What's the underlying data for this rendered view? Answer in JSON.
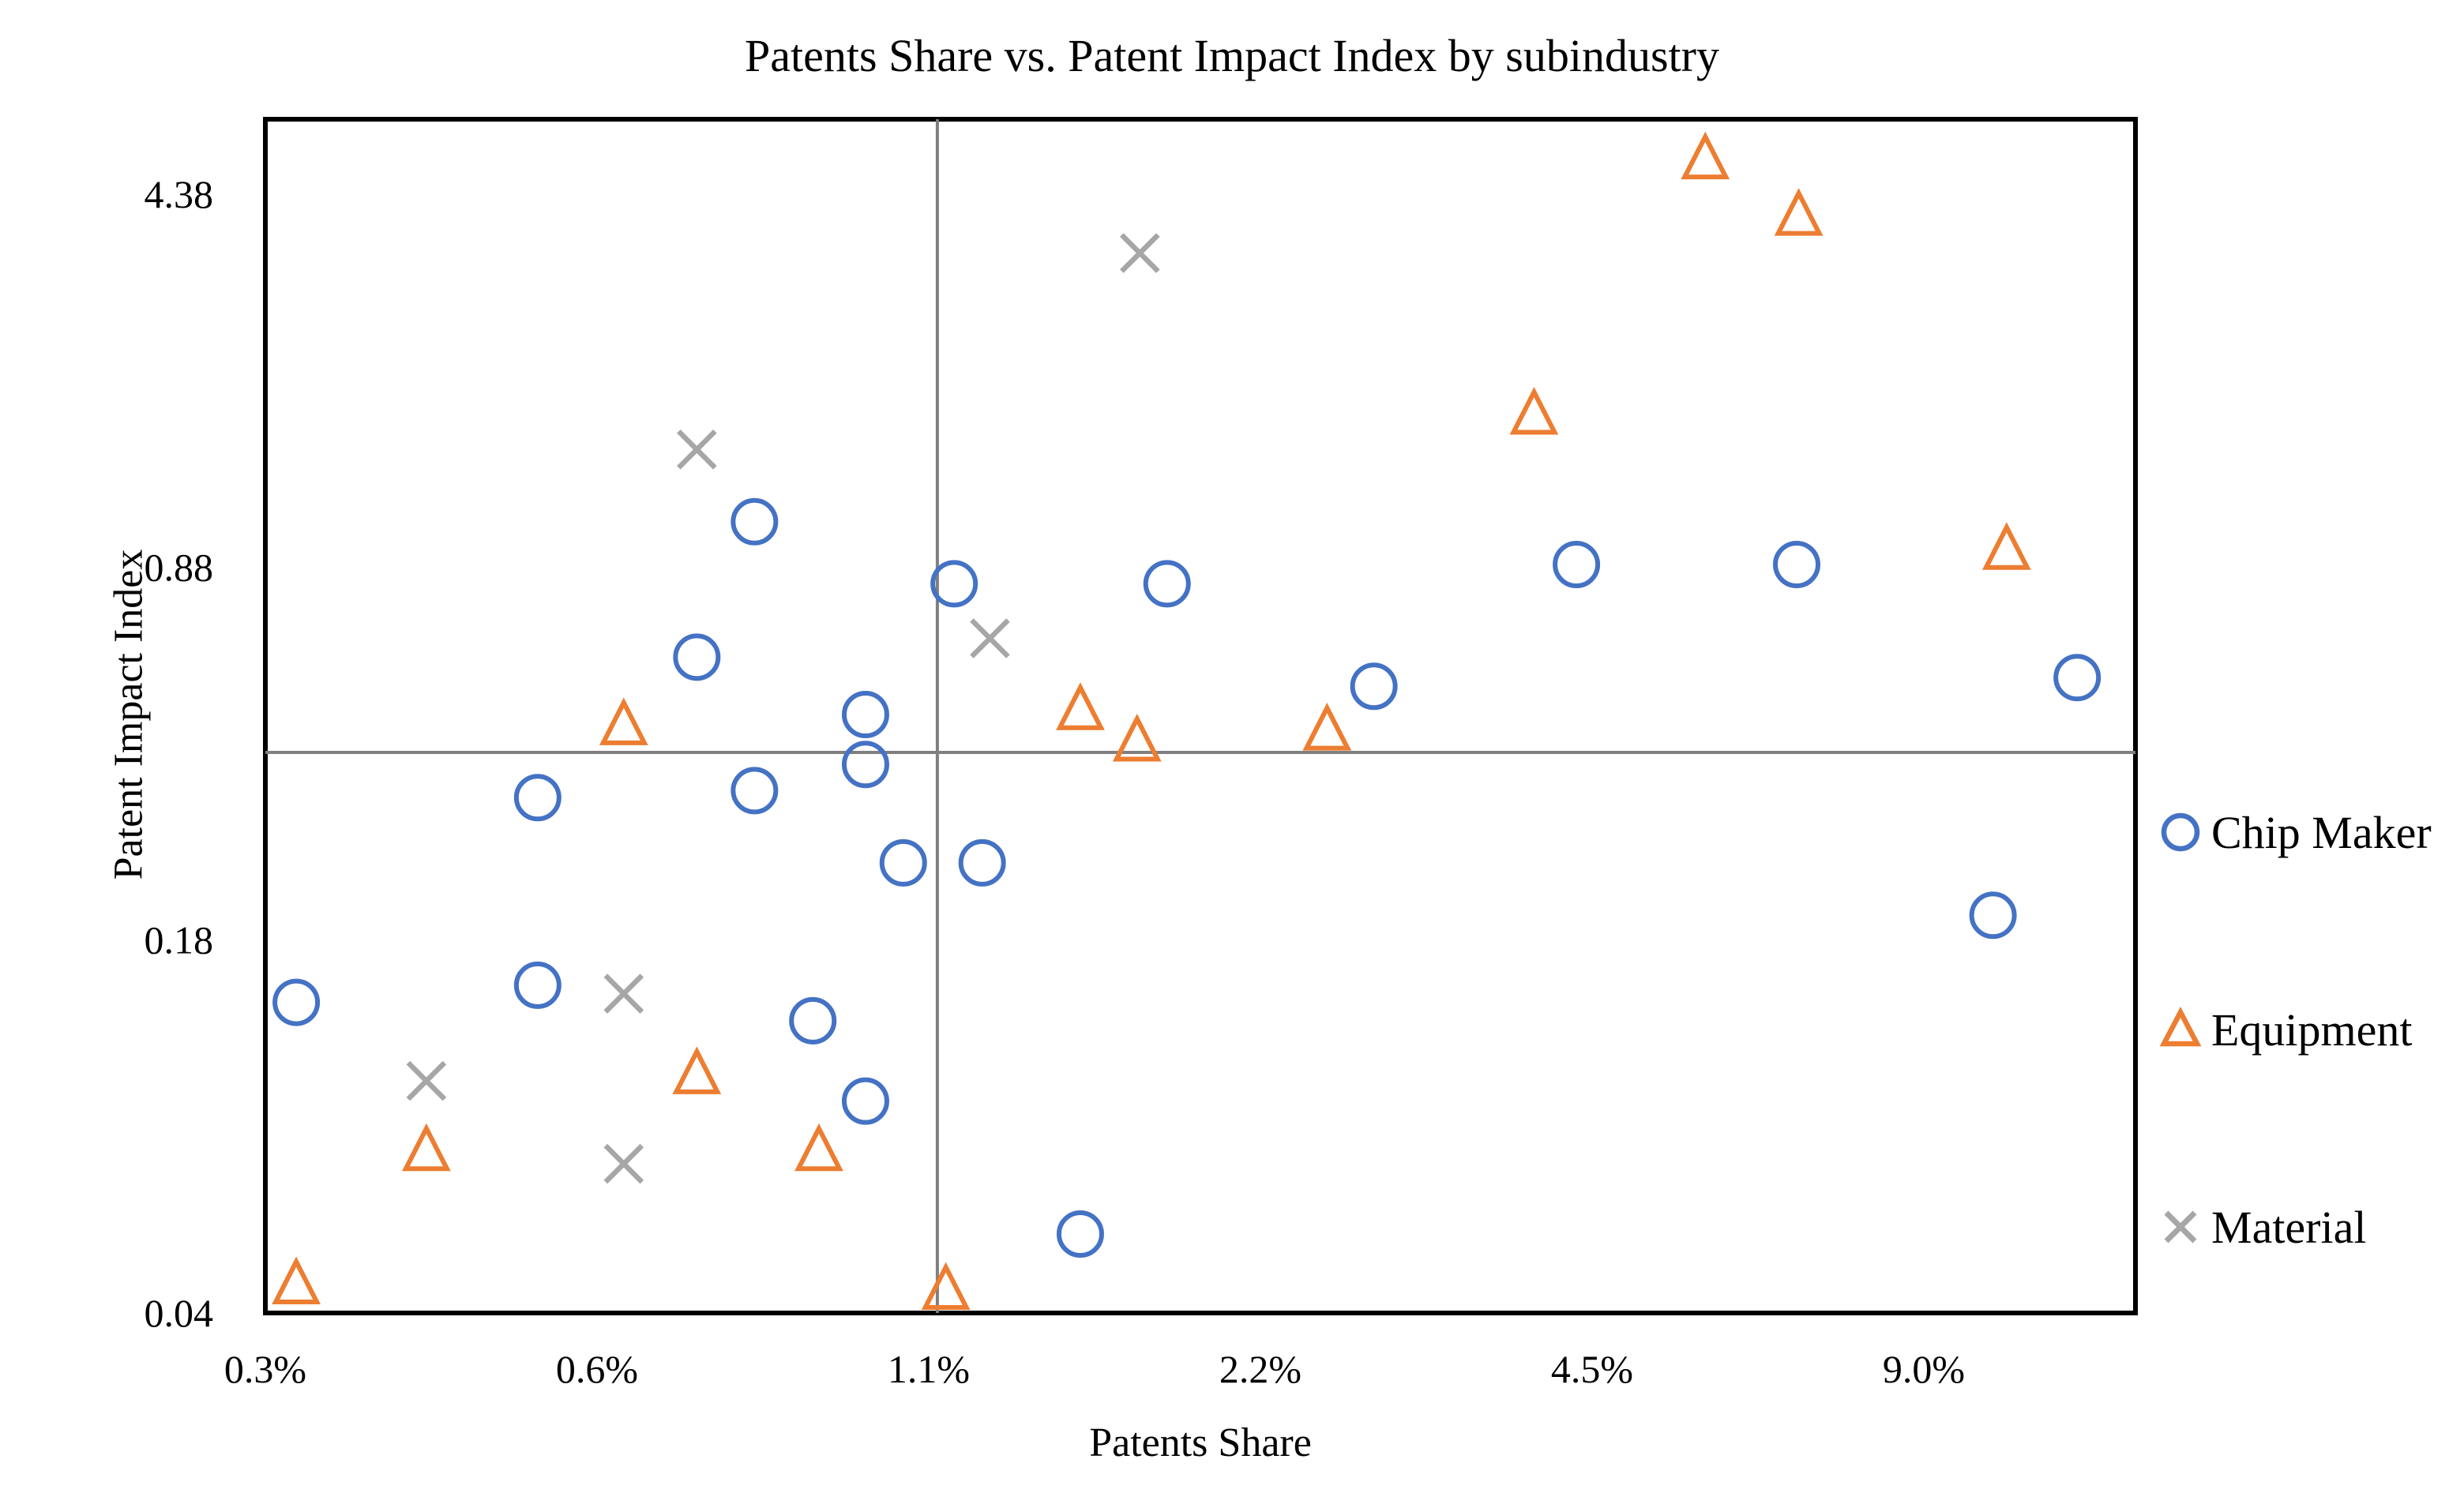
{
  "chart_data": {
    "type": "scatter",
    "title": "Patents Share vs. Patent Impact Index by subindustry",
    "xlabel": "Patents Share",
    "ylabel": "Patent Impact Index",
    "x_scale": "log",
    "y_scale": "log",
    "grid": false,
    "legend_position": "right-outside",
    "x_ticks": {
      "values": [
        0.3,
        0.6,
        1.1,
        2.2,
        4.5,
        9.0
      ],
      "labels": [
        "0.3%",
        "0.6%",
        "1.1%",
        "2.2%",
        "4.5%",
        "9.0%"
      ]
    },
    "y_ticks": {
      "values": [
        4.38,
        0.88,
        0.18,
        0.04
      ],
      "labels": [
        "4.38",
        "0.88",
        "0.18",
        "0.04"
      ]
    },
    "xlim_right_pct": 14.5,
    "ylim_top": 6.0,
    "crosshair": {
      "x_pct": 1.12,
      "y": 0.4
    },
    "frame_color": "#000000",
    "crosshair_color": "#7f7f7f",
    "series": [
      {
        "name": "Chip Maker",
        "marker": "circle",
        "color": "#4472C4",
        "points": [
          [
            0.32,
            0.14
          ],
          [
            0.53,
            0.15
          ],
          [
            0.53,
            0.33
          ],
          [
            0.72,
            0.6
          ],
          [
            0.8,
            1.07
          ],
          [
            0.8,
            0.34
          ],
          [
            0.98,
            0.47
          ],
          [
            0.98,
            0.38
          ],
          [
            0.89,
            0.13
          ],
          [
            0.98,
            0.094
          ],
          [
            1.05,
            0.25
          ],
          [
            1.23,
            0.25
          ],
          [
            1.16,
            0.82
          ],
          [
            1.51,
            0.055
          ],
          [
            1.81,
            0.82
          ],
          [
            2.81,
            0.53
          ],
          [
            4.35,
            0.89
          ],
          [
            6.9,
            0.89
          ],
          [
            10.4,
            0.2
          ],
          [
            12.4,
            0.55
          ]
        ]
      },
      {
        "name": "Equipment",
        "marker": "triangle",
        "color": "#ED7D31",
        "points": [
          [
            0.32,
            0.045
          ],
          [
            0.42,
            0.077
          ],
          [
            0.63,
            0.45
          ],
          [
            0.72,
            0.105
          ],
          [
            0.9,
            0.077
          ],
          [
            1.14,
            0.044
          ],
          [
            1.51,
            0.48
          ],
          [
            1.7,
            0.42
          ],
          [
            2.54,
            0.44
          ],
          [
            3.97,
            1.7
          ],
          [
            5.7,
            5.1
          ],
          [
            6.93,
            4.0
          ],
          [
            10.7,
            0.95
          ]
        ]
      },
      {
        "name": "Material",
        "marker": "x",
        "color": "#A6A6A6",
        "points": [
          [
            0.42,
            0.102
          ],
          [
            0.63,
            0.145
          ],
          [
            0.63,
            0.073
          ],
          [
            0.72,
            1.46
          ],
          [
            1.25,
            0.65
          ],
          [
            1.71,
            3.4
          ]
        ]
      }
    ]
  }
}
